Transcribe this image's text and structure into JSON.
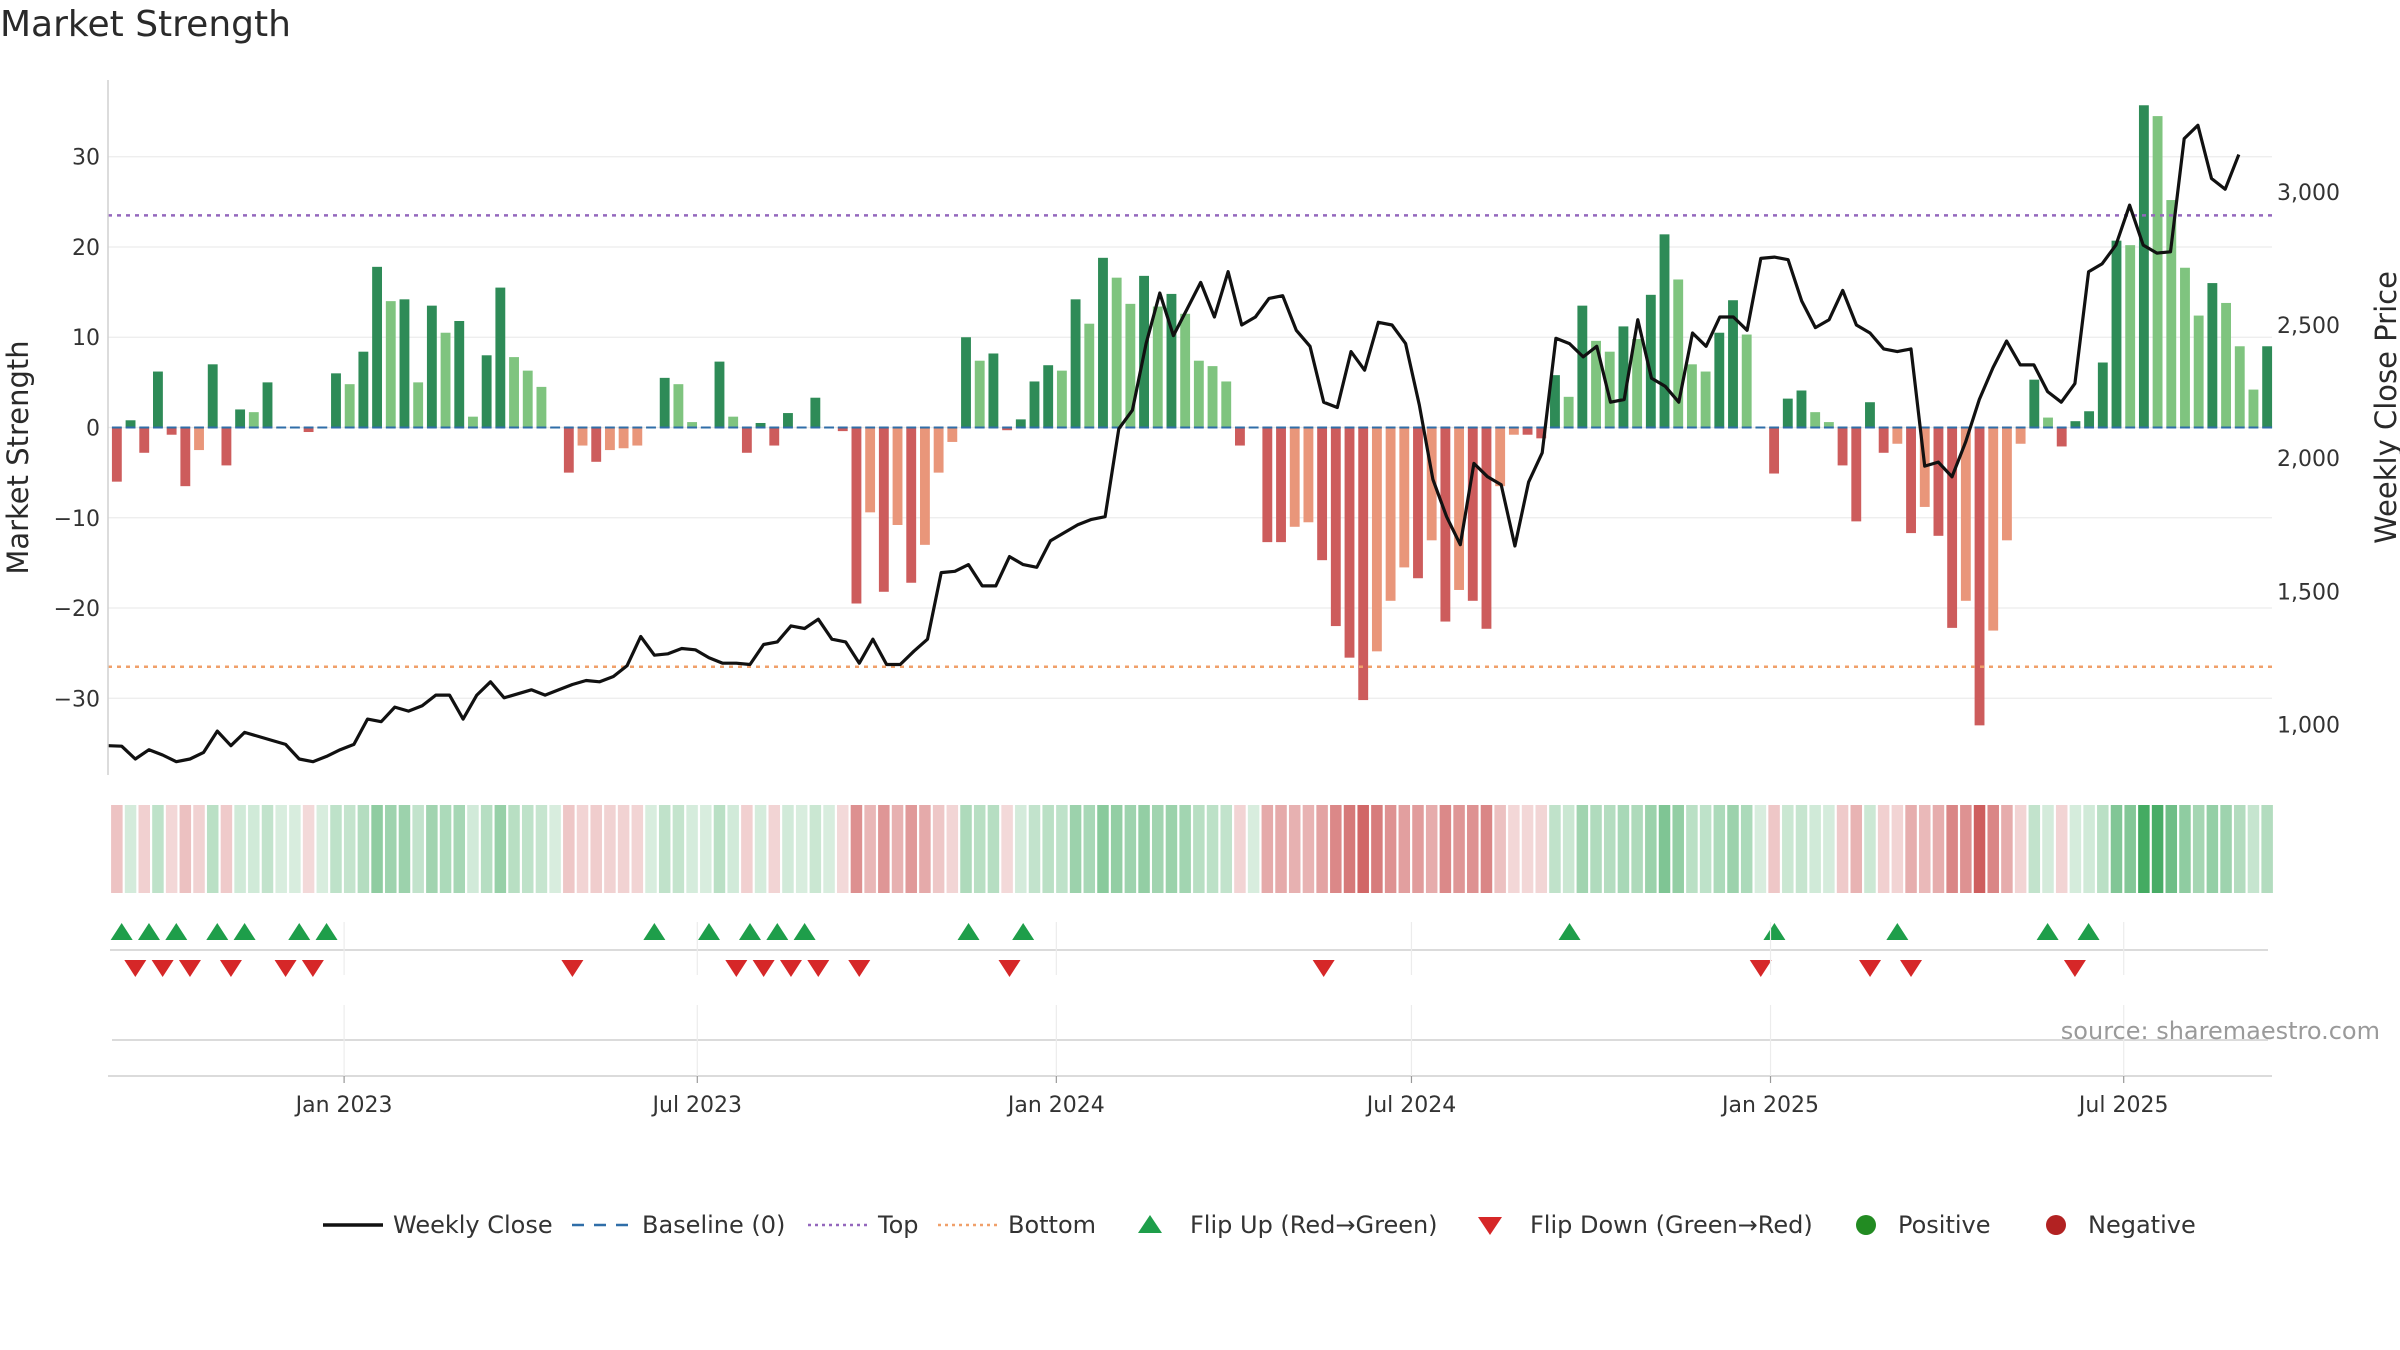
{
  "title": "Market Strength",
  "source_note": "source: sharemaestro.com",
  "colors": {
    "strong_green": "#2e8b57",
    "light_green": "#7fc47f",
    "strong_red": "#cd5c5c",
    "light_red": "#e9967a",
    "close_line": "#111111",
    "baseline": "#2f6ea8",
    "top": "#9467bd",
    "bottom": "#f0a06a",
    "flip_up": "#1e9e4a",
    "flip_down": "#d62728",
    "positive": "#228b22",
    "negative": "#b22222"
  },
  "legend": [
    {
      "label": "Weekly Close",
      "symbol": "line",
      "color": "#111111"
    },
    {
      "label": "Baseline (0)",
      "symbol": "dash",
      "color": "#2f6ea8"
    },
    {
      "label": "Top",
      "symbol": "dot",
      "color": "#9467bd"
    },
    {
      "label": "Bottom",
      "symbol": "dot",
      "color": "#f0a06a"
    },
    {
      "label": "Flip Up (Red→Green)",
      "symbol": "triangle-up",
      "color": "#1e9e4a"
    },
    {
      "label": "Flip Down (Green→Red)",
      "symbol": "triangle-down",
      "color": "#d62728"
    },
    {
      "label": "Positive",
      "symbol": "circle",
      "color": "#228b22"
    },
    {
      "label": "Negative",
      "symbol": "circle",
      "color": "#b22222"
    }
  ],
  "chart_data": {
    "type": "bar",
    "title": "Market Strength",
    "ylabel": "Market Strength",
    "y2label": "Weekly Close Price",
    "ylim": [
      -38.5,
      38.5
    ],
    "y2lim": [
      810,
      3420
    ],
    "yticks": [
      -30,
      -20,
      -10,
      0,
      10,
      20,
      30
    ],
    "ytick_labels": [
      "−30",
      "−20",
      "−10",
      "0",
      "10",
      "20",
      "30"
    ],
    "y2ticks": [
      1000,
      1500,
      2000,
      2500,
      3000
    ],
    "y2tick_labels": [
      "1,000",
      "1,500",
      "2,000",
      "2,500",
      "3,000"
    ],
    "x_start": "2022-09-02",
    "x_end": "2025-09-15",
    "xticks": [
      "2023-01-01",
      "2023-07-01",
      "2024-01-01",
      "2024-07-01",
      "2025-01-01",
      "2025-07-01"
    ],
    "xtick_labels": [
      "Jan 2023",
      "Jul 2023",
      "Jan 2024",
      "Jul 2024",
      "Jan 2025",
      "Jul 2025"
    ],
    "grid": true,
    "legend_position": "bottom",
    "top_level": 23.5,
    "bottom_level": -26.5,
    "baseline": 0,
    "series": [
      {
        "name": "Market Strength",
        "values": [
          -6,
          0.8,
          -2.8,
          6.2,
          -0.8,
          -6.5,
          -2.5,
          7,
          -4.2,
          2,
          1.7,
          5,
          0,
          0,
          -0.5,
          0,
          6,
          4.8,
          8.4,
          17.8,
          14,
          14.2,
          5,
          13.5,
          10.5,
          11.8,
          1.2,
          8,
          15.5,
          7.8,
          6.3,
          4.5,
          0,
          -5,
          -2,
          -3.8,
          -2.5,
          -2.3,
          -2,
          0,
          5.5,
          4.8,
          0.6,
          0,
          7.3,
          1.2,
          -2.8,
          0.5,
          -2,
          1.6,
          0,
          3.3,
          0,
          -0.4,
          -19.5,
          -9.4,
          -18.2,
          -10.8,
          -17.2,
          -13,
          -5,
          -1.6,
          10,
          7.4,
          8.2,
          -0.3,
          0.9,
          5.1,
          6.9,
          6.3,
          14.2,
          11.5,
          18.8,
          16.6,
          13.7,
          16.8,
          13.4,
          14.8,
          12.6,
          7.4,
          6.8,
          5.1,
          -2,
          0,
          -12.7,
          -12.7,
          -11,
          -10.5,
          -14.7,
          -22,
          -25.5,
          -30.2,
          -24.8,
          -19.2,
          -15.5,
          -16.7,
          -12.5,
          -21.5,
          -18,
          -19.2,
          -22.3,
          -6.5,
          -0.8,
          -0.8,
          -1.2,
          5.8,
          3.4,
          13.5,
          9.6,
          8.4,
          11.2,
          9.8,
          14.7,
          21.4,
          16.4,
          7,
          6.2,
          10.5,
          14.1,
          10.3,
          0,
          -5.1,
          3.2,
          4.1,
          1.7,
          0.6,
          -4.2,
          -10.4,
          2.8,
          -2.8,
          -1.8,
          -11.7,
          -8.8,
          -12,
          -22.2,
          -19.2,
          -33,
          -22.5,
          -12.5,
          -1.8,
          5.3,
          1.1,
          -2.1,
          0.7,
          1.8,
          7.2,
          20.7,
          20.2,
          35.7,
          34.5,
          25.2,
          17.7,
          12.4,
          16,
          13.8,
          9,
          4.2,
          9
        ]
      },
      {
        "name": "Weekly Close",
        "points": [
          [
            "2022-09-02",
            920
          ],
          [
            "2022-09-09",
            918
          ],
          [
            "2022-09-16",
            870
          ],
          [
            "2022-09-23",
            905
          ],
          [
            "2022-09-30",
            885
          ],
          [
            "2022-10-07",
            860
          ],
          [
            "2022-10-14",
            870
          ],
          [
            "2022-10-21",
            895
          ],
          [
            "2022-10-28",
            975
          ],
          [
            "2022-11-04",
            920
          ],
          [
            "2022-11-11",
            970
          ],
          [
            "2022-11-18",
            955
          ],
          [
            "2022-11-25",
            940
          ],
          [
            "2022-12-02",
            925
          ],
          [
            "2022-12-09",
            870
          ],
          [
            "2022-12-16",
            860
          ],
          [
            "2022-12-23",
            880
          ],
          [
            "2022-12-30",
            905
          ],
          [
            "2023-01-06",
            925
          ],
          [
            "2023-01-13",
            1020
          ],
          [
            "2023-01-20",
            1010
          ],
          [
            "2023-01-27",
            1065
          ],
          [
            "2023-02-03",
            1050
          ],
          [
            "2023-02-10",
            1070
          ],
          [
            "2023-02-17",
            1110
          ],
          [
            "2023-02-24",
            1110
          ],
          [
            "2023-03-03",
            1020
          ],
          [
            "2023-03-10",
            1110
          ],
          [
            "2023-03-17",
            1160
          ],
          [
            "2023-03-24",
            1100
          ],
          [
            "2023-03-31",
            1115
          ],
          [
            "2023-04-07",
            1130
          ],
          [
            "2023-04-14",
            1110
          ],
          [
            "2023-04-21",
            1130
          ],
          [
            "2023-04-28",
            1150
          ],
          [
            "2023-05-05",
            1165
          ],
          [
            "2023-05-12",
            1160
          ],
          [
            "2023-05-19",
            1180
          ],
          [
            "2023-05-26",
            1220
          ],
          [
            "2023-06-02",
            1330
          ],
          [
            "2023-06-09",
            1260
          ],
          [
            "2023-06-16",
            1265
          ],
          [
            "2023-06-23",
            1285
          ],
          [
            "2023-06-30",
            1280
          ],
          [
            "2023-07-07",
            1250
          ],
          [
            "2023-07-14",
            1230
          ],
          [
            "2023-07-21",
            1230
          ],
          [
            "2023-07-28",
            1225
          ],
          [
            "2023-08-04",
            1300
          ],
          [
            "2023-08-11",
            1310
          ],
          [
            "2023-08-18",
            1370
          ],
          [
            "2023-08-25",
            1360
          ],
          [
            "2023-09-01",
            1395
          ],
          [
            "2023-09-08",
            1320
          ],
          [
            "2023-09-15",
            1310
          ],
          [
            "2023-09-22",
            1230
          ],
          [
            "2023-09-29",
            1320
          ],
          [
            "2023-10-06",
            1225
          ],
          [
            "2023-10-13",
            1225
          ],
          [
            "2023-10-20",
            1275
          ],
          [
            "2023-10-27",
            1320
          ],
          [
            "2023-11-03",
            1570
          ],
          [
            "2023-11-10",
            1575
          ],
          [
            "2023-11-17",
            1600
          ],
          [
            "2023-11-24",
            1520
          ],
          [
            "2023-12-01",
            1520
          ],
          [
            "2023-12-08",
            1630
          ],
          [
            "2023-12-15",
            1600
          ],
          [
            "2023-12-22",
            1590
          ],
          [
            "2023-12-29",
            1690
          ],
          [
            "2024-01-05",
            1720
          ],
          [
            "2024-01-12",
            1750
          ],
          [
            "2024-01-19",
            1770
          ],
          [
            "2024-01-26",
            1780
          ],
          [
            "2024-02-02",
            2110
          ],
          [
            "2024-02-09",
            2180
          ],
          [
            "2024-02-16",
            2430
          ],
          [
            "2024-02-23",
            2620
          ],
          [
            "2024-03-01",
            2460
          ],
          [
            "2024-03-08",
            2560
          ],
          [
            "2024-03-15",
            2660
          ],
          [
            "2024-03-22",
            2530
          ],
          [
            "2024-03-29",
            2700
          ],
          [
            "2024-04-05",
            2500
          ],
          [
            "2024-04-12",
            2530
          ],
          [
            "2024-04-19",
            2600
          ],
          [
            "2024-04-26",
            2610
          ],
          [
            "2024-05-03",
            2480
          ],
          [
            "2024-05-10",
            2420
          ],
          [
            "2024-05-17",
            2210
          ],
          [
            "2024-05-24",
            2190
          ],
          [
            "2024-05-31",
            2400
          ],
          [
            "2024-06-07",
            2330
          ],
          [
            "2024-06-14",
            2510
          ],
          [
            "2024-06-21",
            2500
          ],
          [
            "2024-06-28",
            2430
          ],
          [
            "2024-07-05",
            2200
          ],
          [
            "2024-07-12",
            1920
          ],
          [
            "2024-07-19",
            1780
          ],
          [
            "2024-07-26",
            1675
          ],
          [
            "2024-08-02",
            1980
          ],
          [
            "2024-08-09",
            1930
          ],
          [
            "2024-08-16",
            1900
          ],
          [
            "2024-08-23",
            1670
          ],
          [
            "2024-08-30",
            1910
          ],
          [
            "2024-09-06",
            2020
          ],
          [
            "2024-09-13",
            2450
          ],
          [
            "2024-09-20",
            2430
          ],
          [
            "2024-09-27",
            2380
          ],
          [
            "2024-10-04",
            2420
          ],
          [
            "2024-10-11",
            2210
          ],
          [
            "2024-10-18",
            2220
          ],
          [
            "2024-10-25",
            2520
          ],
          [
            "2024-11-01",
            2300
          ],
          [
            "2024-11-08",
            2270
          ],
          [
            "2024-11-15",
            2210
          ],
          [
            "2024-11-22",
            2470
          ],
          [
            "2024-11-29",
            2420
          ],
          [
            "2024-12-06",
            2530
          ],
          [
            "2024-12-13",
            2530
          ],
          [
            "2024-12-20",
            2480
          ],
          [
            "2024-12-27",
            2750
          ],
          [
            "2025-01-03",
            2755
          ],
          [
            "2025-01-10",
            2745
          ],
          [
            "2025-01-17",
            2590
          ],
          [
            "2025-01-24",
            2490
          ],
          [
            "2025-01-31",
            2520
          ],
          [
            "2025-02-07",
            2630
          ],
          [
            "2025-02-14",
            2500
          ],
          [
            "2025-02-21",
            2470
          ],
          [
            "2025-02-28",
            2410
          ],
          [
            "2025-03-07",
            2400
          ],
          [
            "2025-03-14",
            2410
          ],
          [
            "2025-03-21",
            1970
          ],
          [
            "2025-03-28",
            1985
          ],
          [
            "2025-04-04",
            1930
          ],
          [
            "2025-04-11",
            2060
          ],
          [
            "2025-04-18",
            2220
          ],
          [
            "2025-04-25",
            2340
          ],
          [
            "2025-05-02",
            2440
          ],
          [
            "2025-05-09",
            2350
          ],
          [
            "2025-05-16",
            2350
          ],
          [
            "2025-05-23",
            2250
          ],
          [
            "2025-05-30",
            2210
          ],
          [
            "2025-06-06",
            2280
          ],
          [
            "2025-06-13",
            2700
          ],
          [
            "2025-06-20",
            2730
          ],
          [
            "2025-06-27",
            2800
          ],
          [
            "2025-07-04",
            2950
          ],
          [
            "2025-07-11",
            2800
          ],
          [
            "2025-07-18",
            2770
          ],
          [
            "2025-07-25",
            2775
          ],
          [
            "2025-08-01",
            3200
          ],
          [
            "2025-08-08",
            3250
          ],
          [
            "2025-08-15",
            3050
          ],
          [
            "2025-08-22",
            3010
          ],
          [
            "2025-08-29",
            3140
          ]
        ]
      }
    ],
    "flip_up_dates": [
      "2022-09-09",
      "2022-09-23",
      "2022-10-07",
      "2022-10-28",
      "2022-11-11",
      "2022-12-09",
      "2022-12-23",
      "2023-06-09",
      "2023-07-07",
      "2023-07-28",
      "2023-08-11",
      "2023-08-25",
      "2023-11-17",
      "2023-12-15",
      "2024-09-20",
      "2025-01-03",
      "2025-03-07",
      "2025-05-23",
      "2025-06-13"
    ],
    "flip_down_dates": [
      "2022-09-16",
      "2022-09-30",
      "2022-10-14",
      "2022-11-04",
      "2022-12-02",
      "2022-12-16",
      "2023-04-28",
      "2023-07-21",
      "2023-08-04",
      "2023-08-18",
      "2023-09-01",
      "2023-09-22",
      "2023-12-08",
      "2024-05-17",
      "2024-12-27",
      "2025-02-21",
      "2025-03-14",
      "2025-06-06"
    ]
  }
}
